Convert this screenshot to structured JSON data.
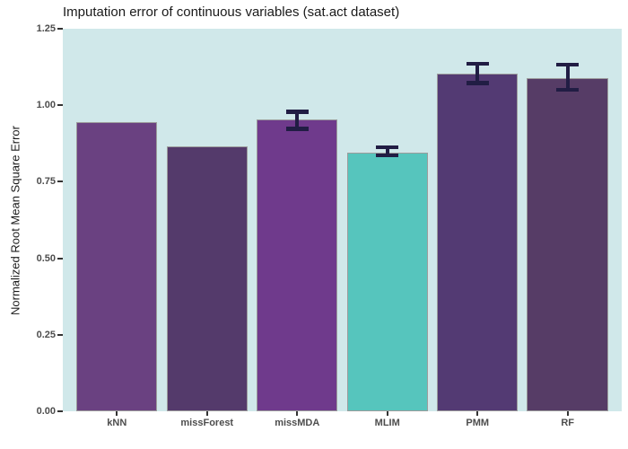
{
  "chart_data": {
    "type": "bar",
    "title": "Imputation error of continuous variables (sat.act dataset)",
    "ylabel": "Normalized Root Mean Square Error",
    "xlabel": "",
    "categories": [
      "kNN",
      "missForest",
      "missMDA",
      "MLIM",
      "PMM",
      "RF"
    ],
    "values": [
      0.944,
      0.866,
      0.953,
      0.846,
      1.102,
      1.089
    ],
    "error_bars": [
      null,
      null,
      {
        "low": 0.923,
        "high": 0.979
      },
      {
        "low": 0.837,
        "high": 0.863
      },
      {
        "low": 1.073,
        "high": 1.136
      },
      {
        "low": 1.05,
        "high": 1.133
      }
    ],
    "bar_colors": [
      "#6a4181",
      "#543a6b",
      "#6f3a8c",
      "#56c5bd",
      "#533a73",
      "#563c66"
    ],
    "ylim": [
      0,
      1.25
    ],
    "y_ticks": [
      0,
      0.25,
      0.5,
      0.75,
      1.0,
      1.25
    ],
    "y_tick_labels": [
      "0.00",
      "0.25",
      "0.50",
      "0.75",
      "1.00",
      "1.25"
    ],
    "grid": false,
    "legend": "none",
    "panel_bg": "#d0e8ea",
    "bar_border_color": "#9c9c9c",
    "error_bar_color": "#211d44"
  }
}
